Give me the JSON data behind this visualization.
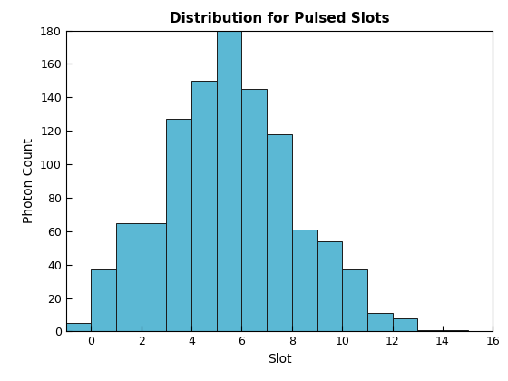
{
  "title": "Distribution for Pulsed Slots",
  "xlabel": "Slot",
  "ylabel": "Photon Count",
  "bar_color": "#5BB8D4",
  "edge_color": "#1a1a1a",
  "bin_edges": [
    -1,
    0,
    1,
    2,
    3,
    4,
    5,
    6,
    7,
    8,
    9,
    10,
    11,
    12,
    13,
    14,
    15
  ],
  "bar_heights": [
    5,
    37,
    65,
    65,
    127,
    150,
    180,
    145,
    118,
    61,
    54,
    37,
    11,
    8,
    1,
    1
  ],
  "xlim": [
    -1,
    16
  ],
  "ylim": [
    0,
    180
  ],
  "yticks": [
    0,
    20,
    40,
    60,
    80,
    100,
    120,
    140,
    160,
    180
  ],
  "xticks": [
    0,
    2,
    4,
    6,
    8,
    10,
    12,
    14,
    16
  ],
  "title_fontsize": 11,
  "label_fontsize": 10,
  "tick_fontsize": 9,
  "figwidth": 5.6,
  "figheight": 4.2,
  "dpi": 100
}
